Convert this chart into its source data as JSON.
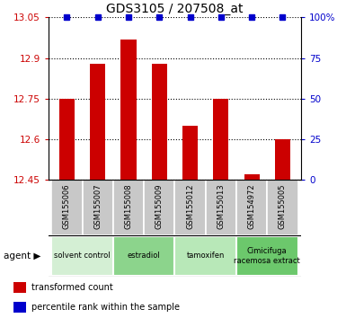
{
  "title": "GDS3105 / 207508_at",
  "samples": [
    "GSM155006",
    "GSM155007",
    "GSM155008",
    "GSM155009",
    "GSM155012",
    "GSM155013",
    "GSM154972",
    "GSM155005"
  ],
  "red_values": [
    12.75,
    12.88,
    12.97,
    12.88,
    12.65,
    12.75,
    12.47,
    12.6
  ],
  "blue_values": [
    100,
    100,
    100,
    100,
    100,
    100,
    100,
    100
  ],
  "ylim_left": [
    12.45,
    13.05
  ],
  "ylim_right": [
    0,
    100
  ],
  "yticks_left": [
    12.45,
    12.6,
    12.75,
    12.9,
    13.05
  ],
  "yticks_right": [
    0,
    25,
    50,
    75,
    100
  ],
  "ytick_labels_right": [
    "0",
    "25",
    "50",
    "75",
    "100%"
  ],
  "bar_color": "#cc0000",
  "dot_color": "#0000cc",
  "bar_width": 0.5,
  "sample_box_color": "#c8c8c8",
  "group_boundaries": [
    [
      0,
      2,
      "solvent control",
      "#d4efd4"
    ],
    [
      2,
      4,
      "estradiol",
      "#8cd48c"
    ],
    [
      4,
      6,
      "tamoxifen",
      "#b8e8b8"
    ],
    [
      6,
      8,
      "Cimicifuga\nracemosa extract",
      "#6cc86c"
    ]
  ],
  "legend_items": [
    "transformed count",
    "percentile rank within the sample"
  ]
}
